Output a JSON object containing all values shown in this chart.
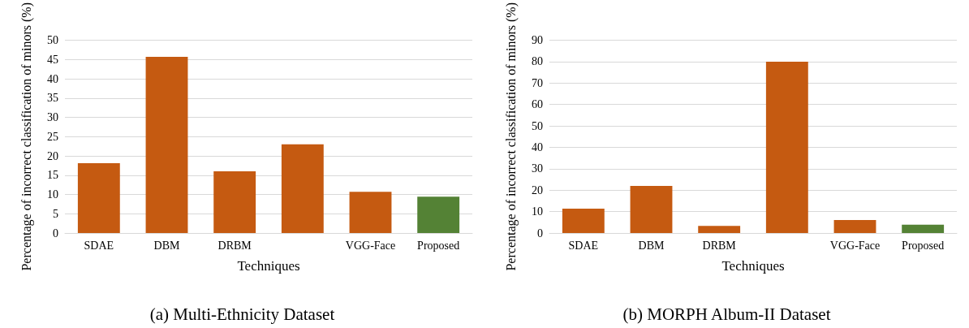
{
  "chart_data": [
    {
      "type": "bar",
      "title": "(a) Multi-Ethnicity Dataset",
      "xlabel": "Techniques",
      "ylabel": "Percentage of incorrect classification of minors (%)",
      "categories": [
        "SDAE",
        "DBM",
        "DRBM",
        null,
        "VGG-Face",
        "Proposed"
      ],
      "values": [
        18.1,
        45.7,
        16,
        23,
        10.7,
        9.4
      ],
      "colors": [
        "#c55a11",
        "#c55a11",
        "#c55a11",
        "#c55a11",
        "#c55a11",
        "#548235"
      ],
      "ylim": [
        0,
        50
      ],
      "yticks": [
        0,
        5,
        10,
        15,
        20,
        25,
        30,
        35,
        40,
        45,
        50
      ],
      "grid": "y"
    },
    {
      "type": "bar",
      "title": "(b) MORPH Album-II Dataset",
      "xlabel": "Techniques",
      "ylabel": "Percentage of incorrect classification of minors (%)",
      "categories": [
        "SDAE",
        "DBM",
        "DRBM",
        null,
        "VGG-Face",
        "Proposed"
      ],
      "values": [
        11.4,
        22,
        3.3,
        80,
        6.1,
        3.9
      ],
      "colors": [
        "#c55a11",
        "#c55a11",
        "#c55a11",
        "#c55a11",
        "#c55a11",
        "#548235"
      ],
      "ylim": [
        0,
        90
      ],
      "yticks": [
        0,
        10,
        20,
        30,
        40,
        50,
        60,
        70,
        80,
        90
      ],
      "grid": "y"
    }
  ]
}
